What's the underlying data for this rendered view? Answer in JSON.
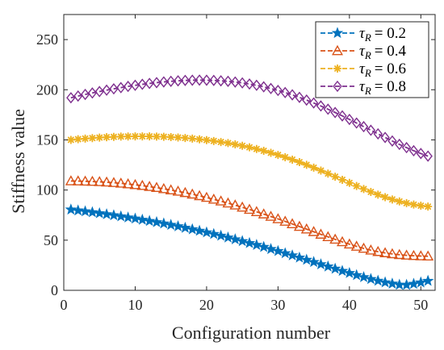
{
  "chart_data": {
    "type": "line",
    "xlabel": "Configuration number",
    "ylabel": "Stiffness value",
    "xlim": [
      0,
      52
    ],
    "ylim": [
      0,
      275
    ],
    "xticks": [
      0,
      10,
      20,
      30,
      40,
      50
    ],
    "yticks": [
      0,
      50,
      100,
      150,
      200,
      250
    ],
    "grid": false,
    "legend_position": "top-right",
    "x": [
      1,
      2,
      3,
      4,
      5,
      6,
      7,
      8,
      9,
      10,
      11,
      12,
      13,
      14,
      15,
      16,
      17,
      18,
      19,
      20,
      21,
      22,
      23,
      24,
      25,
      26,
      27,
      28,
      29,
      30,
      31,
      32,
      33,
      34,
      35,
      36,
      37,
      38,
      39,
      40,
      41,
      42,
      43,
      44,
      45,
      46,
      47,
      48,
      49,
      50,
      51
    ],
    "series": [
      {
        "legend_symbol": "τ",
        "legend_subscript": "R",
        "legend_value": "= 0.2",
        "color": "#0072BD",
        "marker": "star",
        "values": [
          80.5,
          79.6,
          78.7,
          77.8,
          76.8,
          75.8,
          74.8,
          73.7,
          72.6,
          71.5,
          70.3,
          69.1,
          67.9,
          66.6,
          65.2,
          63.8,
          62.3,
          60.8,
          59.3,
          57.7,
          56.1,
          54.4,
          52.6,
          50.8,
          49.0,
          47.1,
          45.2,
          43.2,
          41.1,
          39.1,
          36.9,
          34.8,
          32.6,
          30.4,
          28.2,
          25.9,
          23.7,
          21.5,
          19.3,
          17.2,
          15.1,
          13.1,
          11.2,
          9.5,
          7.9,
          6.6,
          5.5,
          5.4,
          6.4,
          7.8,
          9.4
        ]
      },
      {
        "legend_symbol": "τ",
        "legend_subscript": "R",
        "legend_value": "= 0.4",
        "color": "#D95319",
        "marker": "triangle",
        "values": [
          109.0,
          108.9,
          108.7,
          108.5,
          108.2,
          107.8,
          107.3,
          106.7,
          106.0,
          105.2,
          104.4,
          103.4,
          102.4,
          101.2,
          100.0,
          98.7,
          97.3,
          95.8,
          94.2,
          92.5,
          90.7,
          88.9,
          86.9,
          84.9,
          82.8,
          80.6,
          78.3,
          76.0,
          73.6,
          71.2,
          68.7,
          66.2,
          63.6,
          61.0,
          58.4,
          55.8,
          53.3,
          50.8,
          48.3,
          46.0,
          43.8,
          41.8,
          40.0,
          38.5,
          37.3,
          36.3,
          35.5,
          34.9,
          34.5,
          34.2,
          34.0
        ]
      },
      {
        "legend_symbol": "τ",
        "legend_subscript": "R",
        "legend_value": "= 0.6",
        "color": "#EDB120",
        "marker": "asterisk",
        "values": [
          150.0,
          150.7,
          151.3,
          151.8,
          152.3,
          152.7,
          153.0,
          153.3,
          153.4,
          153.5,
          153.5,
          153.5,
          153.3,
          153.1,
          152.8,
          152.4,
          151.9,
          151.3,
          150.6,
          149.8,
          148.9,
          147.9,
          146.8,
          145.5,
          144.1,
          142.6,
          140.9,
          139.1,
          137.1,
          135.0,
          132.7,
          130.3,
          127.8,
          125.1,
          122.3,
          119.4,
          116.4,
          113.3,
          110.2,
          107.1,
          104.0,
          101.0,
          98.1,
          95.4,
          92.9,
          90.6,
          88.6,
          86.9,
          85.5,
          84.4,
          83.5
        ]
      },
      {
        "legend_symbol": "τ",
        "legend_subscript": "R",
        "legend_value": "= 0.8",
        "color": "#7E2F8E",
        "marker": "diamond",
        "values": [
          192.0,
          193.7,
          195.3,
          196.8,
          198.2,
          199.6,
          200.9,
          202.1,
          203.3,
          204.4,
          205.4,
          206.3,
          207.1,
          207.8,
          208.4,
          208.9,
          209.3,
          209.5,
          209.6,
          209.5,
          209.3,
          208.9,
          208.4,
          207.7,
          206.8,
          205.7,
          204.4,
          202.9,
          201.2,
          199.3,
          197.2,
          194.9,
          192.4,
          189.7,
          186.8,
          183.8,
          180.6,
          177.3,
          173.9,
          170.4,
          166.8,
          163.2,
          159.6,
          156.0,
          152.4,
          148.9,
          145.5,
          142.3,
          139.2,
          136.4,
          133.8
        ]
      }
    ]
  }
}
